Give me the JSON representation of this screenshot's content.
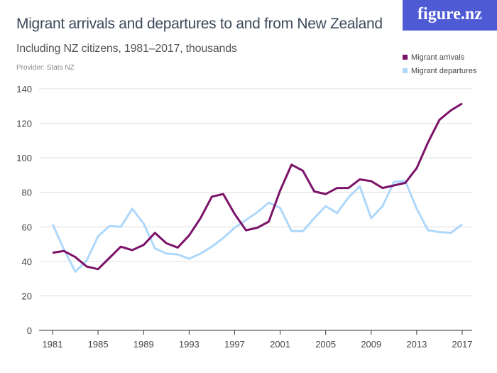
{
  "header": {
    "title": "Migrant arrivals and departures to and from New Zealand",
    "subtitle": "Including NZ citizens, 1981–2017, thousands",
    "provider": "Provider: Stats NZ",
    "logo": "figure.nz"
  },
  "colors": {
    "arrivals": "#7b1369",
    "departures": "#aed8fb",
    "logo_bg": "#4f5bd5"
  },
  "chart_data": {
    "type": "line",
    "title": "Migrant arrivals and departures to and from New Zealand",
    "subtitle": "Including NZ citizens, 1981–2017, thousands",
    "x": [
      1981,
      1982,
      1983,
      1984,
      1985,
      1986,
      1987,
      1988,
      1989,
      1990,
      1991,
      1992,
      1993,
      1994,
      1995,
      1996,
      1997,
      1998,
      1999,
      2000,
      2001,
      2002,
      2003,
      2004,
      2005,
      2006,
      2007,
      2008,
      2009,
      2010,
      2011,
      2012,
      2013,
      2014,
      2015,
      2016,
      2017
    ],
    "xticks": [
      "1981",
      "1985",
      "1989",
      "1993",
      "1997",
      "2001",
      "2005",
      "2009",
      "2013",
      "2017"
    ],
    "yticks": [
      "0",
      "20",
      "40",
      "60",
      "80",
      "100",
      "120",
      "140"
    ],
    "ylim": [
      0,
      140
    ],
    "grid": true,
    "legend": "top-right",
    "series": [
      {
        "name": "Migrant arrivals",
        "color": "#7b1369",
        "values": [
          45,
          46,
          42.5,
          37,
          35.5,
          42,
          48.5,
          46.5,
          49.5,
          56.5,
          50.5,
          48,
          55,
          65,
          77.5,
          79,
          67.5,
          58,
          59.5,
          63,
          81,
          96,
          92.5,
          80.5,
          79,
          82.5,
          82.5,
          87.5,
          86.5,
          82.5,
          84,
          85.5,
          94,
          109,
          122,
          127.5,
          131.5
        ]
      },
      {
        "name": "Migrant departures",
        "color": "#aed8fb",
        "values": [
          61.5,
          47,
          34,
          40.5,
          54.5,
          60.5,
          60,
          70.5,
          62,
          47.5,
          44.5,
          44,
          41.5,
          44.5,
          48.5,
          53.5,
          59.5,
          64,
          68.5,
          74,
          71,
          57.5,
          57.5,
          65,
          72,
          68,
          77,
          83.5,
          65,
          72,
          86,
          86.5,
          70.5,
          58,
          57,
          56.5,
          61.5
        ]
      }
    ]
  }
}
